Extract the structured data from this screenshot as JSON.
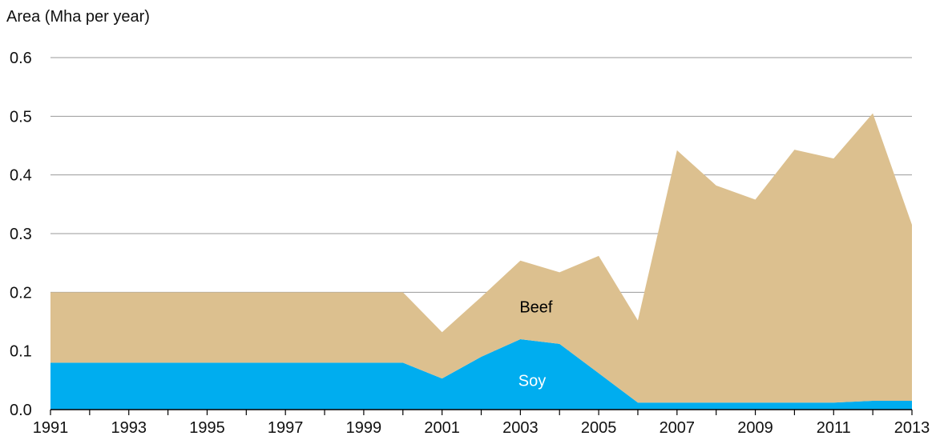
{
  "chart_data": {
    "type": "area",
    "stacked": true,
    "ylabel": "Area (Mha per year)",
    "xlabel": "",
    "ylim": [
      0,
      0.6
    ],
    "yticks": [
      "0.0",
      "0.1",
      "0.2",
      "0.3",
      "0.4",
      "0.5",
      "0.6"
    ],
    "xticks": [
      "1991",
      "1993",
      "1995",
      "1997",
      "1999",
      "2001",
      "2003",
      "2005",
      "2007",
      "2009",
      "2011",
      "2013"
    ],
    "x": [
      1991,
      1992,
      1993,
      1994,
      1995,
      1996,
      1997,
      1998,
      1999,
      2000,
      2001,
      2002,
      2003,
      2004,
      2005,
      2006,
      2007,
      2008,
      2009,
      2010,
      2011,
      2012,
      2013
    ],
    "grid": "horizontal",
    "series": [
      {
        "name": "Soy",
        "color": "#00adef",
        "label_color": "#ffffff",
        "values": [
          0.08,
          0.08,
          0.08,
          0.08,
          0.08,
          0.08,
          0.08,
          0.08,
          0.08,
          0.08,
          0.053,
          0.09,
          0.12,
          0.112,
          0.062,
          0.012,
          0.012,
          0.012,
          0.012,
          0.012,
          0.012,
          0.015,
          0.015
        ]
      },
      {
        "name": "Beef",
        "color": "#dcc08f",
        "label_color": "#000000",
        "values": [
          0.12,
          0.12,
          0.12,
          0.12,
          0.12,
          0.12,
          0.12,
          0.12,
          0.12,
          0.12,
          0.079,
          0.102,
          0.134,
          0.122,
          0.2,
          0.14,
          0.43,
          0.37,
          0.346,
          0.431,
          0.416,
          0.49,
          0.3
        ]
      }
    ],
    "labels": [
      {
        "text": "Beef",
        "x": 2003.4,
        "y": 0.175
      },
      {
        "text": "Soy",
        "x": 2003.3,
        "y": 0.05
      }
    ]
  }
}
